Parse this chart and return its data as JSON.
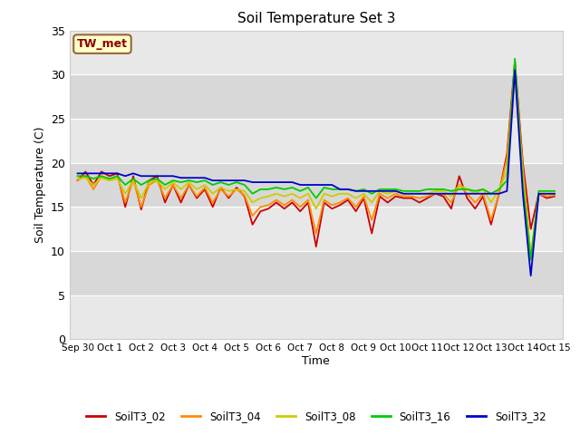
{
  "title": "Soil Temperature Set 3",
  "xlabel": "Time",
  "ylabel": "Soil Temperature (C)",
  "ylim": [
    0,
    35
  ],
  "annotation": "TW_met",
  "bg_color": "#e8e8e8",
  "alt_band_color": "#d8d8d8",
  "series": {
    "SoilT3_02": {
      "color": "#cc0000",
      "data": [
        18.0,
        19.0,
        17.5,
        19.0,
        18.5,
        18.8,
        15.0,
        18.5,
        14.7,
        18.0,
        18.5,
        15.5,
        17.5,
        15.5,
        17.5,
        16.0,
        17.0,
        15.0,
        17.2,
        16.0,
        17.2,
        16.2,
        13.0,
        14.5,
        14.8,
        15.5,
        14.8,
        15.5,
        14.5,
        15.5,
        10.5,
        15.5,
        14.8,
        15.2,
        15.8,
        14.5,
        16.0,
        12.0,
        16.2,
        15.5,
        16.2,
        16.0,
        16.0,
        15.5,
        16.0,
        16.5,
        16.2,
        14.8,
        18.5,
        16.0,
        14.8,
        16.2,
        13.0,
        16.5,
        21.0,
        31.5,
        20.0,
        12.5,
        16.5,
        16.0,
        16.2
      ]
    },
    "SoilT3_04": {
      "color": "#ff8c00",
      "data": [
        18.0,
        18.5,
        17.0,
        18.5,
        18.0,
        18.5,
        15.5,
        18.0,
        15.0,
        17.5,
        18.0,
        16.0,
        17.5,
        16.0,
        17.5,
        16.2,
        17.2,
        15.5,
        17.0,
        16.2,
        17.0,
        16.3,
        14.0,
        15.0,
        15.2,
        15.8,
        15.2,
        15.8,
        15.0,
        15.8,
        12.0,
        15.8,
        15.2,
        15.5,
        16.0,
        15.0,
        16.2,
        13.5,
        16.5,
        16.0,
        16.5,
        16.2,
        16.2,
        16.0,
        16.2,
        16.5,
        16.5,
        15.5,
        17.5,
        16.5,
        15.5,
        16.5,
        13.5,
        16.5,
        20.5,
        31.0,
        19.5,
        9.2,
        16.5,
        16.2,
        16.3
      ]
    },
    "SoilT3_08": {
      "color": "#cccc00",
      "data": [
        18.2,
        18.3,
        17.5,
        18.3,
        18.0,
        18.2,
        16.5,
        18.0,
        16.0,
        17.8,
        18.0,
        17.0,
        17.8,
        17.0,
        17.8,
        17.0,
        17.5,
        16.5,
        17.2,
        16.8,
        17.0,
        16.8,
        15.5,
        16.0,
        16.2,
        16.5,
        16.2,
        16.5,
        16.0,
        16.5,
        14.8,
        16.5,
        16.2,
        16.5,
        16.5,
        16.0,
        16.5,
        15.5,
        16.8,
        16.5,
        16.8,
        16.5,
        16.5,
        16.5,
        16.5,
        16.8,
        16.8,
        16.2,
        17.5,
        17.0,
        16.5,
        17.0,
        15.5,
        17.0,
        19.0,
        30.0,
        18.5,
        9.5,
        16.5,
        16.5,
        16.5
      ]
    },
    "SoilT3_16": {
      "color": "#00cc00",
      "data": [
        18.5,
        18.5,
        18.2,
        18.5,
        18.2,
        18.5,
        17.5,
        18.2,
        17.5,
        18.0,
        18.2,
        17.5,
        18.0,
        17.8,
        18.0,
        17.8,
        18.0,
        17.5,
        17.8,
        17.5,
        17.8,
        17.5,
        16.5,
        17.0,
        17.0,
        17.2,
        17.0,
        17.2,
        16.8,
        17.2,
        16.0,
        17.2,
        17.0,
        17.0,
        17.0,
        16.8,
        17.0,
        16.5,
        17.0,
        17.0,
        17.0,
        16.8,
        16.8,
        16.8,
        17.0,
        17.0,
        17.0,
        16.8,
        17.0,
        17.0,
        16.8,
        17.0,
        16.5,
        17.0,
        18.0,
        31.8,
        17.5,
        9.0,
        16.8,
        16.8,
        16.8
      ]
    },
    "SoilT3_32": {
      "color": "#0000cc",
      "data": [
        18.8,
        18.8,
        18.8,
        18.8,
        18.8,
        18.8,
        18.5,
        18.8,
        18.5,
        18.5,
        18.5,
        18.5,
        18.5,
        18.3,
        18.3,
        18.3,
        18.3,
        18.0,
        18.0,
        18.0,
        18.0,
        18.0,
        17.8,
        17.8,
        17.8,
        17.8,
        17.8,
        17.8,
        17.5,
        17.5,
        17.5,
        17.5,
        17.5,
        17.0,
        17.0,
        16.8,
        16.8,
        16.8,
        16.8,
        16.8,
        16.8,
        16.5,
        16.5,
        16.5,
        16.5,
        16.5,
        16.5,
        16.5,
        16.5,
        16.5,
        16.5,
        16.5,
        16.5,
        16.5,
        16.8,
        30.5,
        16.5,
        7.2,
        16.5,
        16.5,
        16.5
      ]
    }
  },
  "xtick_labels": [
    "Sep 30",
    "Oct 1",
    "Oct 2",
    "Oct 3",
    "Oct 4",
    "Oct 5",
    "Oct 6",
    "Oct 7",
    "Oct 8",
    "Oct 9",
    "Oct 10",
    "Oct 11",
    "Oct 12",
    "Oct 13",
    "Oct 14",
    "Oct 15"
  ],
  "xtick_positions": [
    0,
    4,
    8,
    12,
    16,
    20,
    24,
    28,
    32,
    36,
    40,
    44,
    48,
    52,
    56,
    60
  ],
  "ytick_positions": [
    0,
    5,
    10,
    15,
    20,
    25,
    30,
    35
  ],
  "n_points": 61
}
